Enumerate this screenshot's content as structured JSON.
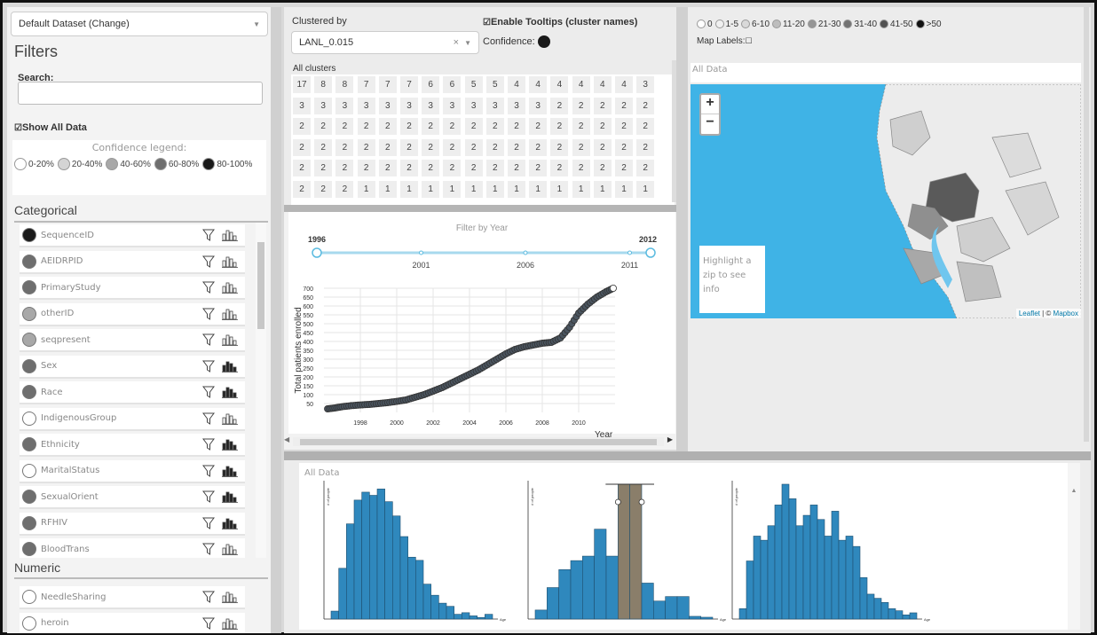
{
  "filters": {
    "dataset_select": "Default Dataset (Change)",
    "title": "Filters",
    "search_label": "Search:",
    "search_placeholder": "",
    "show_all_data": "Show All Data",
    "confidence_legend_title": "Confidence legend:",
    "confidence_legend": [
      {
        "label": "0-20%",
        "color": "#ffffff"
      },
      {
        "label": "20-40%",
        "color": "#d4d4d4"
      },
      {
        "label": "40-60%",
        "color": "#a8a8a8"
      },
      {
        "label": "60-80%",
        "color": "#6e6e6e"
      },
      {
        "label": "80-100%",
        "color": "#1a1a1a"
      }
    ],
    "categorical_title": "Categorical",
    "categorical": [
      {
        "label": "SequenceID",
        "color": "#1a1a1a"
      },
      {
        "label": "AEIDRPID",
        "color": "#6e6e6e"
      },
      {
        "label": "PrimaryStudy",
        "color": "#6e6e6e"
      },
      {
        "label": "otherID",
        "color": "#a8a8a8"
      },
      {
        "label": "seqpresent",
        "color": "#a8a8a8"
      },
      {
        "label": "Sex",
        "color": "#6e6e6e"
      },
      {
        "label": "Race",
        "color": "#6e6e6e"
      },
      {
        "label": "IndigenousGroup",
        "color": "#ffffff"
      },
      {
        "label": "Ethnicity",
        "color": "#6e6e6e"
      },
      {
        "label": "MaritalStatus",
        "color": "#ffffff"
      },
      {
        "label": "SexualOrient",
        "color": "#6e6e6e"
      },
      {
        "label": "RFHIV",
        "color": "#6e6e6e"
      },
      {
        "label": "BloodTrans",
        "color": "#6e6e6e"
      }
    ],
    "numeric_title": "Numeric",
    "numeric": [
      {
        "label": "NeedleSharing",
        "color": "#ffffff"
      },
      {
        "label": "heroin",
        "color": "#ffffff"
      }
    ]
  },
  "cluster": {
    "clustered_by_label": "Clustered by",
    "clustered_by_value": "LANL_0.015",
    "clear_symbol": "×",
    "tooltips_label": "Enable Tooltips (cluster names)",
    "confidence_label": "Confidence:",
    "all_clusters_label": "All clusters",
    "rows": [
      [
        17,
        8,
        8,
        7,
        7,
        7,
        6,
        6,
        5,
        5,
        4,
        4,
        4,
        4,
        4,
        4,
        3
      ],
      [
        3,
        3,
        3,
        3,
        3,
        3,
        3,
        3,
        3,
        3,
        3,
        3,
        2,
        2,
        2,
        2,
        2
      ],
      [
        2,
        2,
        2,
        2,
        2,
        2,
        2,
        2,
        2,
        2,
        2,
        2,
        2,
        2,
        2,
        2,
        2
      ],
      [
        2,
        2,
        2,
        2,
        2,
        2,
        2,
        2,
        2,
        2,
        2,
        2,
        2,
        2,
        2,
        2,
        2
      ],
      [
        2,
        2,
        2,
        2,
        2,
        2,
        2,
        2,
        2,
        2,
        2,
        2,
        2,
        2,
        2,
        2,
        2
      ],
      [
        2,
        2,
        2,
        1,
        1,
        1,
        1,
        1,
        1,
        1,
        1,
        1,
        1,
        1,
        1,
        1,
        1
      ]
    ]
  },
  "timeline": {
    "title": "Filter by Year",
    "range_start": "1996",
    "range_end": "2012",
    "slider_ticks": [
      "2001",
      "2006",
      "2011"
    ]
  },
  "chart_data": [
    {
      "type": "scatter",
      "title": "",
      "xlabel": "Year",
      "ylabel": "Total patients enrolled",
      "xlim": [
        1996,
        2012
      ],
      "ylim": [
        0,
        700
      ],
      "x_ticks": [
        "1998",
        "2000",
        "2002",
        "2004",
        "2006",
        "2008",
        "2010"
      ],
      "y_ticks": [
        50,
        100,
        150,
        200,
        250,
        300,
        350,
        400,
        450,
        500,
        550,
        600,
        650,
        700
      ],
      "x": [
        1996.2,
        1996.6,
        1997.0,
        1997.5,
        1998.0,
        1998.5,
        1999.0,
        1999.5,
        2000.0,
        2000.5,
        2001.0,
        2001.5,
        2002.0,
        2002.5,
        2003.0,
        2003.5,
        2004.0,
        2004.5,
        2005.0,
        2005.5,
        2006.0,
        2006.5,
        2007.0,
        2007.5,
        2008.0,
        2008.5,
        2009.0,
        2009.5,
        2010.0,
        2010.5,
        2011.0,
        2011.5,
        2011.9
      ],
      "y": [
        20,
        25,
        32,
        38,
        42,
        45,
        50,
        55,
        62,
        70,
        85,
        100,
        120,
        140,
        165,
        190,
        215,
        240,
        270,
        300,
        330,
        355,
        370,
        380,
        390,
        395,
        420,
        480,
        560,
        610,
        650,
        680,
        700
      ]
    },
    {
      "type": "bar",
      "title": "All Data",
      "xlabel": "Age",
      "ylabel": "# of people",
      "values": [
        5,
        32,
        60,
        75,
        80,
        78,
        82,
        74,
        65,
        52,
        39,
        37,
        22,
        15,
        10,
        8,
        3,
        4,
        2,
        1,
        3
      ],
      "ylim": [
        0,
        85
      ]
    },
    {
      "type": "bar",
      "xlabel": "Age",
      "ylabel": "# of people",
      "values": [
        10,
        35,
        55,
        65,
        70,
        100,
        70,
        150,
        150,
        40,
        20,
        25,
        25,
        3,
        2
      ],
      "highlighted_bins": [
        7,
        8
      ],
      "ylim": [
        0,
        150
      ]
    },
    {
      "type": "bar",
      "xlabel": "Age",
      "ylabel": "# of people",
      "values": [
        5,
        28,
        40,
        38,
        45,
        55,
        65,
        58,
        45,
        50,
        55,
        48,
        40,
        52,
        38,
        40,
        35,
        20,
        12,
        10,
        8,
        5,
        4,
        2,
        3
      ],
      "ylim": [
        0,
        65
      ]
    }
  ],
  "map": {
    "bins": [
      "0",
      "1-5",
      "6-10",
      "11-20",
      "21-30",
      "31-40",
      "41-50",
      ">50"
    ],
    "bin_colors": [
      "#ffffff",
      "#f0f0f0",
      "#d9d9d9",
      "#bdbdbd",
      "#969696",
      "#737373",
      "#525252",
      "#111111"
    ],
    "map_labels": "Map Labels:",
    "all_data": "All Data",
    "zoom_in": "+",
    "zoom_out": "−",
    "info_text": "Highlight a zip to see info",
    "attribution_a": "Leaflet",
    "attribution_sep": " | © ",
    "attribution_b": "Mapbox",
    "water_color": "#3fb3e6"
  },
  "histograms": {
    "label": "All Data"
  }
}
